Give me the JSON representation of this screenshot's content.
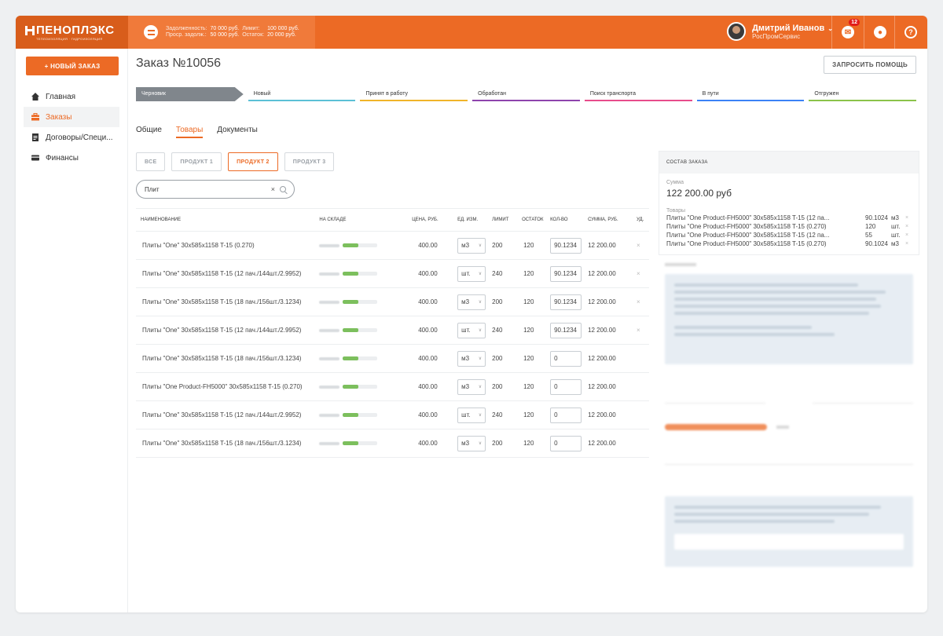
{
  "brand": {
    "name": "ПЕНОПЛЭКС",
    "tagline": "ТЕПЛОИЗОЛЯЦИЯ · ГИДРОИЗОЛЯЦИЯ"
  },
  "debt": {
    "debt_label": "Задолженность:",
    "debt_value": "70 000 руб.",
    "limit_label": "Лимит:",
    "limit_value": "100 000 руб.",
    "overdue_label": "Проср. задолж.:",
    "overdue_value": "50 000 руб.",
    "rest_label": "Остаток:",
    "rest_value": "20 000 руб."
  },
  "user": {
    "name": "Дмитрий Иванов",
    "company": "РосПромСервис",
    "notifications": "12"
  },
  "sidebar": {
    "new_order": "+ НОВЫЙ ЗАКАЗ",
    "items": [
      {
        "label": "Главная",
        "icon": "home-icon"
      },
      {
        "label": "Заказы",
        "icon": "briefcase-icon"
      },
      {
        "label": "Договоры/Специ...",
        "icon": "document-icon"
      },
      {
        "label": "Финансы",
        "icon": "card-icon"
      }
    ]
  },
  "page": {
    "title": "Заказ №10056",
    "help_button": "ЗАПРОСИТЬ ПОМОЩЬ"
  },
  "stages": [
    {
      "label": "Черновик",
      "color": "#80868c"
    },
    {
      "label": "Новый",
      "color": "#5bc0d6"
    },
    {
      "label": "Принят в работу",
      "color": "#f0b429"
    },
    {
      "label": "Обработан",
      "color": "#8e44ad"
    },
    {
      "label": "Поиск транспорта",
      "color": "#e74c8b"
    },
    {
      "label": "В пути",
      "color": "#3b82f6"
    },
    {
      "label": "Отгружен",
      "color": "#8bc34a"
    }
  ],
  "tabs": [
    "Общие",
    "Товары",
    "Документы"
  ],
  "filters": [
    "ВСЕ",
    "ПРОДУКТ 1",
    "ПРОДУКТ 2",
    "ПРОДУКТ 3"
  ],
  "search": {
    "value": "Плит"
  },
  "table": {
    "headers": [
      "НАИМЕНОВАНИЕ",
      "НА СКЛАДЕ",
      "ЦЕНА, РУБ.",
      "ЕД. ИЗМ.",
      "ЛИМИТ",
      "ОСТАТОК",
      "КОЛ-ВО",
      "СУММА, РУБ.",
      "УД."
    ],
    "rows": [
      {
        "name": "Плиты \"One\" 30x585x1158 T-15 (0.270)",
        "stock_level": 0.45,
        "price": "400.00",
        "unit": "м3",
        "limit": "200",
        "rest": "120",
        "qty": "90.1234",
        "sum": "12 200.00",
        "del": "×"
      },
      {
        "name": "Плиты \"One\" 30x585x1158 T-15 (12 пач./144шт./2.9952)",
        "stock_level": 0.45,
        "price": "400.00",
        "unit": "шт.",
        "limit": "240",
        "rest": "120",
        "qty": "90.1234",
        "sum": "12 200.00",
        "del": "×"
      },
      {
        "name": "Плиты \"One\" 30x585x1158 T-15 (18 пач./156шт./3.1234)",
        "stock_level": 0.45,
        "price": "400.00",
        "unit": "м3",
        "limit": "200",
        "rest": "120",
        "qty": "90.1234",
        "sum": "12 200.00",
        "del": "×"
      },
      {
        "name": "Плиты \"One\" 30x585x1158 T-15 (12 пач./144шт./2.9952)",
        "stock_level": 0.45,
        "price": "400.00",
        "unit": "шт.",
        "limit": "240",
        "rest": "120",
        "qty": "90.1234",
        "sum": "12 200.00",
        "del": "×"
      },
      {
        "name": "Плиты \"One\" 30x585x1158 T-15 (18 пач./156шт./3.1234)",
        "stock_level": 0.45,
        "price": "400.00",
        "unit": "м3",
        "limit": "200",
        "rest": "120",
        "qty": "0",
        "sum": "12 200.00",
        "del": ""
      },
      {
        "name": "Плиты \"One Product-FH5000\" 30x585x1158 T-15 (0.270)",
        "stock_level": 0.45,
        "price": "400.00",
        "unit": "м3",
        "limit": "200",
        "rest": "120",
        "qty": "0",
        "sum": "12 200.00",
        "del": ""
      },
      {
        "name": "Плиты \"One\" 30x585x1158 T-15 (12 пач./144шт./2.9952)",
        "stock_level": 0.45,
        "price": "400.00",
        "unit": "шт.",
        "limit": "240",
        "rest": "120",
        "qty": "0",
        "sum": "12 200.00",
        "del": ""
      },
      {
        "name": "Плиты \"One\" 30x585x1158 T-15 (18 пач./156шт./3.1234)",
        "stock_level": 0.45,
        "price": "400.00",
        "unit": "м3",
        "limit": "200",
        "rest": "120",
        "qty": "0",
        "sum": "12 200.00",
        "del": ""
      }
    ]
  },
  "order_summary": {
    "title": "СОСТАВ ЗАКАЗА",
    "sum_label": "Сумма",
    "sum_value": "122 200.00 руб",
    "goods_label": "Товары",
    "goods": [
      {
        "name": "Плиты \"One Product-FH5000\" 30x585x1158 T-15 (12 па...",
        "qty": "90.1024",
        "unit": "м3"
      },
      {
        "name": "Плиты \"One Product-FH5000\" 30x585x1158 T-15 (0.270)",
        "qty": "120",
        "unit": "шт."
      },
      {
        "name": "Плиты \"One Product-FH5000\" 30x585x1158 T-15 (12 па...",
        "qty": "55",
        "unit": "шт."
      },
      {
        "name": "Плиты \"One Product-FH5000\" 30x585x1158 T-15 (0.270)",
        "qty": "90.1024",
        "unit": "м3"
      }
    ]
  },
  "colors": {
    "accent": "#ec6a25",
    "stock_bar": "#7cbf5d"
  }
}
